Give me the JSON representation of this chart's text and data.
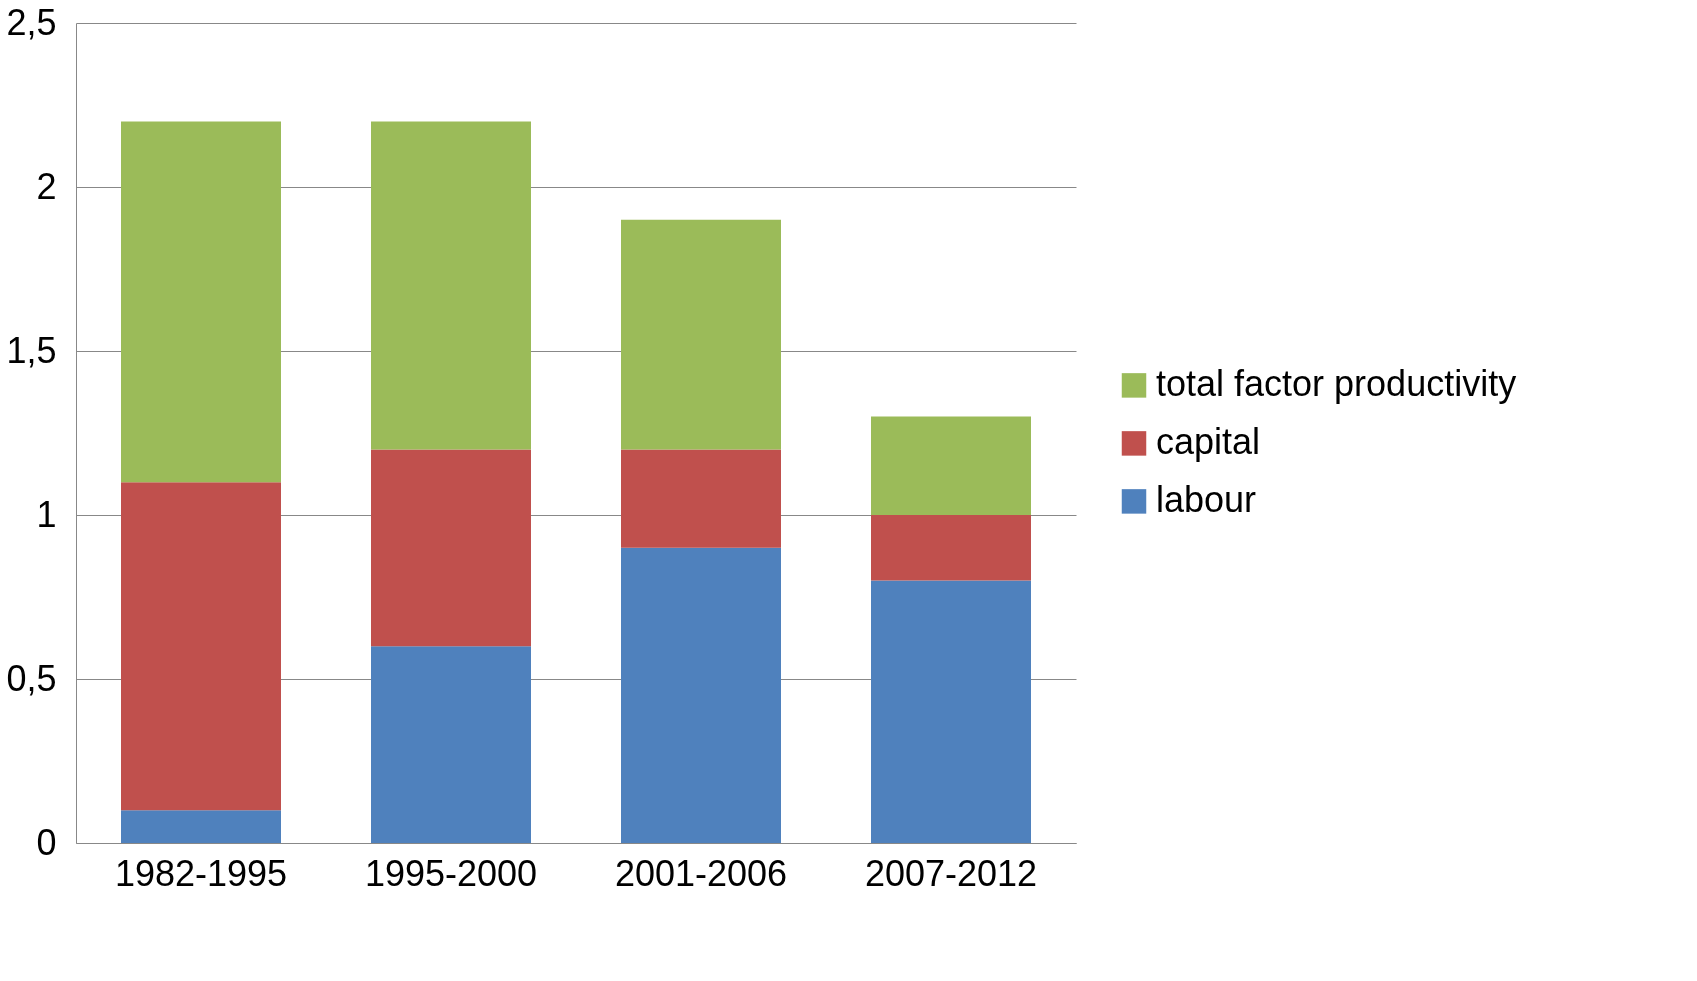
{
  "chart_data": {
    "type": "bar",
    "stacked": true,
    "categories": [
      "1982-1995",
      "1995-2000",
      "2001-2006",
      "2007-2012"
    ],
    "series": [
      {
        "name": "labour",
        "color": "#4f81bd",
        "values": [
          0.1,
          0.6,
          0.9,
          0.8
        ]
      },
      {
        "name": "capital",
        "color": "#c0504d",
        "values": [
          1.0,
          0.6,
          0.3,
          0.2
        ]
      },
      {
        "name": "total factor productivity",
        "color": "#9bbb59",
        "values": [
          1.1,
          1.0,
          0.7,
          0.3
        ]
      }
    ],
    "ylim": [
      0,
      2.5
    ],
    "yticks": [
      0,
      {
        "value": 0.5,
        "label": "0,5"
      },
      1,
      {
        "value": 1.5,
        "label": "1,5"
      },
      2,
      {
        "value": 2.5,
        "label": "2,5"
      }
    ],
    "grid": "y",
    "legend": "right"
  }
}
